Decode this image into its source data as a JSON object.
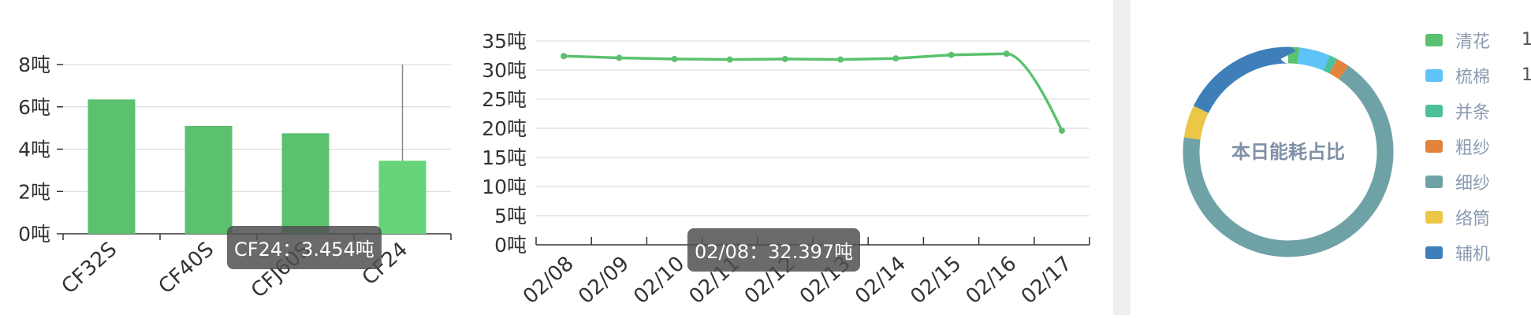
{
  "chart_data": [
    {
      "type": "bar",
      "categories": [
        "CF32S",
        "CF40S",
        "CFJ60S",
        "CF24"
      ],
      "values": [
        6.35,
        5.1,
        4.75,
        3.454
      ],
      "yunit": "吨",
      "ylim": [
        0,
        8
      ],
      "yticks": [
        0,
        2,
        4,
        6,
        8
      ],
      "ytick_labels": [
        "0吨",
        "2吨",
        "4吨",
        "6吨",
        "8吨"
      ],
      "colors": {
        "bar": "#5bc16e",
        "bar_highlight": "#66d47a"
      },
      "highlighted": "CF24",
      "tooltip": "CF24：3.454吨",
      "grid": true
    },
    {
      "type": "line",
      "categories": [
        "02/08",
        "02/09",
        "02/10",
        "02/11",
        "02/12",
        "02/13",
        "02/14",
        "02/15",
        "02/16",
        "02/17"
      ],
      "values": [
        32.397,
        32.1,
        31.9,
        31.8,
        31.9,
        31.8,
        32.0,
        32.6,
        32.8,
        19.6
      ],
      "yunit": "吨",
      "ylim": [
        0,
        35
      ],
      "yticks": [
        0,
        5,
        10,
        15,
        20,
        25,
        30,
        35
      ],
      "ytick_labels": [
        "0吨",
        "5吨",
        "10吨",
        "15吨",
        "20吨",
        "25吨",
        "30吨",
        "35吨"
      ],
      "colors": {
        "line": "#5bc16e"
      },
      "tooltip": "02/08：32.397吨",
      "grid": true
    },
    {
      "type": "pie",
      "center_label": "本日能耗占比",
      "categories": [
        "清花",
        "梳棉",
        "并条",
        "粗纱",
        "细纱",
        "络筒",
        "辅机"
      ],
      "values": [
        1.7,
        4.8,
        1.2,
        2.0,
        67.5,
        5.0,
        17.8
      ],
      "colors": [
        "#5bc16e",
        "#5ec3f7",
        "#4dbf9a",
        "#e2843c",
        "#6fa2a6",
        "#ebc647",
        "#3e7fba"
      ],
      "legend_extra": [
        "1",
        "1",
        "",
        "",
        "",
        "",
        ""
      ],
      "legend": "right"
    }
  ]
}
